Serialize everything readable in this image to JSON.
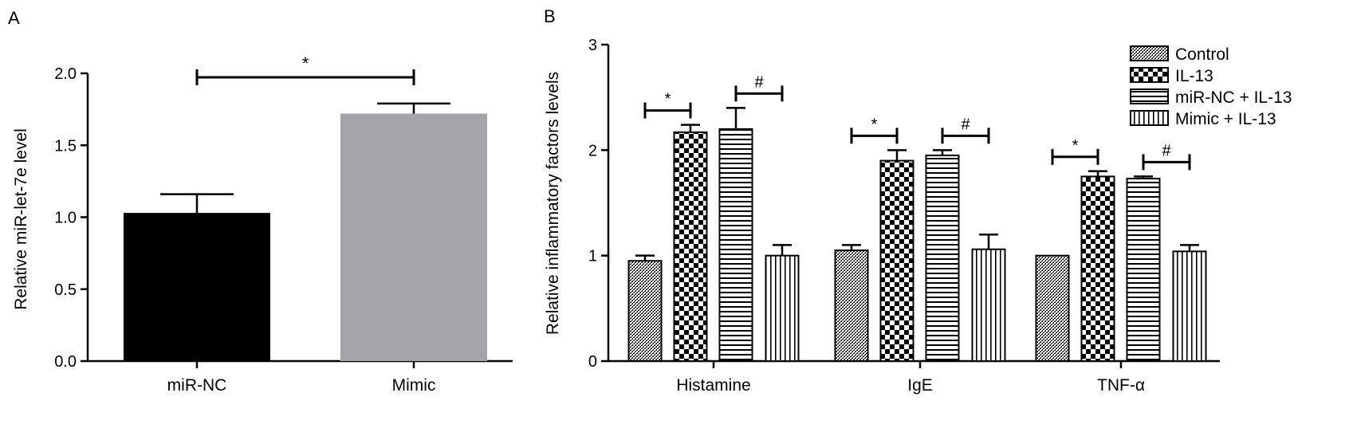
{
  "panels": {
    "a_label": "A",
    "b_label": "B"
  },
  "chart_data": [
    {
      "type": "bar",
      "categories": [
        "miR-NC",
        "Mimic"
      ],
      "values": [
        1.03,
        1.72
      ],
      "errors": [
        0.13,
        0.07
      ],
      "colors": [
        "#000000",
        "#a4a4a9"
      ],
      "xlabel": "",
      "ylabel": "Relative miR-let-7e level",
      "ylim": [
        0,
        2.0
      ],
      "yticks": [
        "0.0",
        "0.5",
        "1.0",
        "1.5",
        "2.0"
      ],
      "grid": false,
      "significance": [
        {
          "from": "miR-NC",
          "to": "Mimic",
          "symbol": "*"
        }
      ]
    },
    {
      "type": "bar",
      "categories": [
        "Histamine",
        "IgE",
        "TNF-α"
      ],
      "series": [
        {
          "name": "Control",
          "pattern": "fine-crosshatch",
          "values": [
            0.95,
            1.05,
            1.0
          ],
          "errors": [
            0.05,
            0.05,
            0.0
          ]
        },
        {
          "name": "IL-13",
          "pattern": "checkerboard",
          "values": [
            2.17,
            1.9,
            1.75
          ],
          "errors": [
            0.07,
            0.1,
            0.05
          ]
        },
        {
          "name": "miR-NC + IL-13",
          "pattern": "horizontal-lines",
          "values": [
            2.2,
            1.95,
            1.73
          ],
          "errors": [
            0.2,
            0.05,
            0.02
          ]
        },
        {
          "name": "Mimic + IL-13",
          "pattern": "vertical-lines",
          "values": [
            1.0,
            1.06,
            1.04
          ],
          "errors": [
            0.1,
            0.14,
            0.06
          ]
        }
      ],
      "xlabel": "",
      "ylabel": "Relative inflammatory factors levels",
      "ylim": [
        0,
        3
      ],
      "yticks": [
        "0",
        "1",
        "2",
        "3"
      ],
      "grid": false,
      "legend_position": "top-right",
      "significance": [
        {
          "category": "Histamine",
          "from": "Control",
          "to": "IL-13",
          "symbol": "*"
        },
        {
          "category": "Histamine",
          "from": "miR-NC + IL-13",
          "to": "Mimic + IL-13",
          "symbol": "#"
        },
        {
          "category": "IgE",
          "from": "Control",
          "to": "IL-13",
          "symbol": "*"
        },
        {
          "category": "IgE",
          "from": "miR-NC + IL-13",
          "to": "Mimic + IL-13",
          "symbol": "#"
        },
        {
          "category": "TNF-α",
          "from": "Control",
          "to": "IL-13",
          "symbol": "*"
        },
        {
          "category": "TNF-α",
          "from": "miR-NC + IL-13",
          "to": "Mimic + IL-13",
          "symbol": "#"
        }
      ]
    }
  ]
}
